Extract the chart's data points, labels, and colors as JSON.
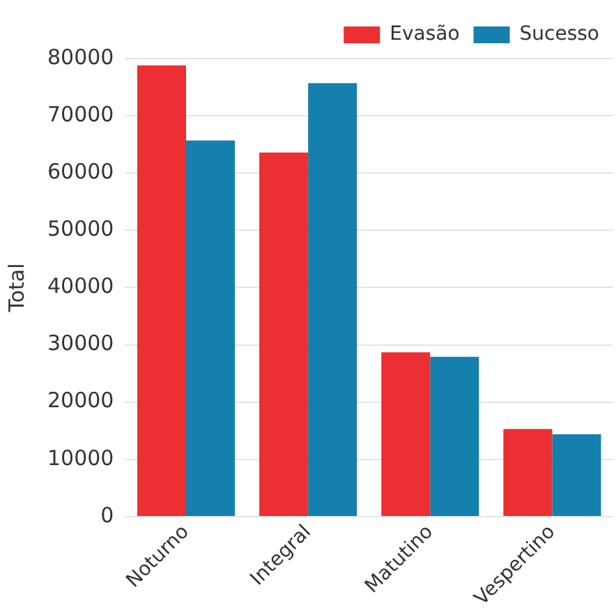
{
  "chart_data": {
    "type": "bar",
    "ylabel": "Total",
    "categories": [
      "Noturno",
      "Integral",
      "Matutino",
      "Vespertino"
    ],
    "series": [
      {
        "name": "Evasão",
        "color": "#ec2f33",
        "values": [
          78800,
          63600,
          28700,
          15300
        ]
      },
      {
        "name": "Sucesso",
        "color": "#157fad",
        "values": [
          65700,
          75700,
          27900,
          14400
        ]
      }
    ],
    "ylim": [
      0,
      80000
    ],
    "yticks": [
      0,
      10000,
      20000,
      30000,
      40000,
      50000,
      60000,
      70000,
      80000
    ],
    "grid": "y",
    "legend": "top right"
  }
}
